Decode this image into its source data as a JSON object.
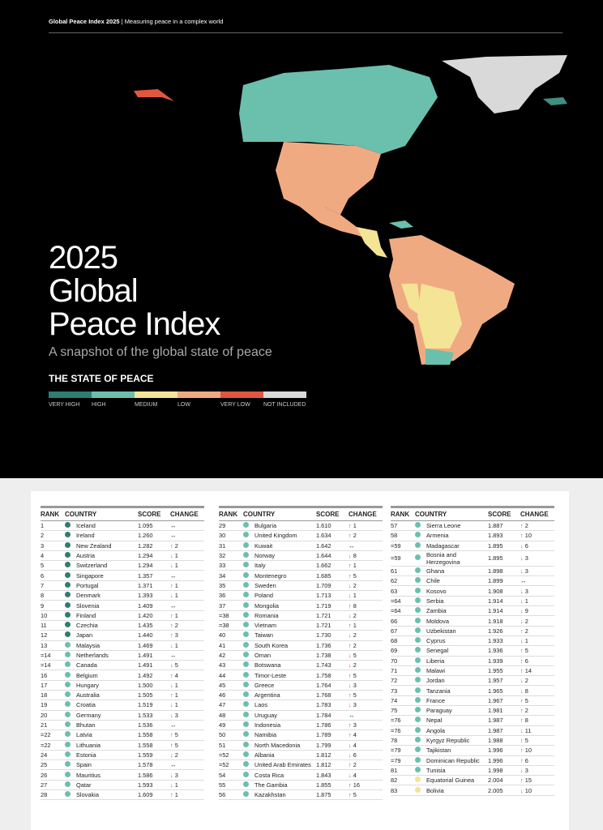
{
  "header": {
    "brand": "Global Peace Index 2025",
    "separator": "|",
    "tagline": "Measuring peace in a complex world"
  },
  "title_lines": [
    "2025",
    "Global",
    "Peace Index"
  ],
  "subtitle": "A snapshot of the global state of peace",
  "legend": {
    "heading": "THE STATE OF PEACE",
    "items": [
      {
        "label": "VERY HIGH",
        "color": "#2e7d70"
      },
      {
        "label": "HIGH",
        "color": "#6bbfad"
      },
      {
        "label": "MEDIUM",
        "color": "#f3e496"
      },
      {
        "label": "LOW",
        "color": "#f0aa82"
      },
      {
        "label": "VERY LOW",
        "color": "#e0573d"
      },
      {
        "label": "NOT INCLUDED",
        "color": "#d9d9d9"
      }
    ]
  },
  "table_columns": [
    "RANK",
    "COUNTRY",
    "SCORE",
    "CHANGE"
  ],
  "tables": [
    {
      "rows": [
        [
          "1",
          "Iceland",
          "1.095",
          "↔",
          0
        ],
        [
          "2",
          "Ireland",
          "1.260",
          "↔",
          0
        ],
        [
          "3",
          "New Zealand",
          "1.282",
          "↑ 2",
          0
        ],
        [
          "4",
          "Austria",
          "1.294",
          "↓ 1",
          0
        ],
        [
          "5",
          "Switzerland",
          "1.294",
          "↓ 1",
          0
        ],
        [
          "6",
          "Singapore",
          "1.357",
          "↔",
          0
        ],
        [
          "7",
          "Portugal",
          "1.371",
          "↑ 1",
          0
        ],
        [
          "8",
          "Denmark",
          "1.393",
          "↓ 1",
          0
        ],
        [
          "9",
          "Slovenia",
          "1.409",
          "↔",
          0
        ],
        [
          "10",
          "Finland",
          "1.420",
          "↑ 1",
          0
        ],
        [
          "11",
          "Czechia",
          "1.435",
          "↑ 2",
          0
        ],
        [
          "12",
          "Japan",
          "1.440",
          "↑ 3",
          0
        ],
        [
          "13",
          "Malaysia",
          "1.469",
          "↓ 1",
          1
        ],
        [
          "=14",
          "Netherlands",
          "1.491",
          "↔",
          1
        ],
        [
          "=14",
          "Canada",
          "1.491",
          "↓ 5",
          1
        ],
        [
          "16",
          "Belgium",
          "1.492",
          "↑ 4",
          1
        ],
        [
          "17",
          "Hungary",
          "1.500",
          "↓ 1",
          1
        ],
        [
          "18",
          "Australia",
          "1.505",
          "↑ 1",
          1
        ],
        [
          "19",
          "Croatia",
          "1.519",
          "↓ 1",
          1
        ],
        [
          "20",
          "Germany",
          "1.533",
          "↓ 3",
          1
        ],
        [
          "21",
          "Bhutan",
          "1.536",
          "↔",
          1
        ],
        [
          "=22",
          "Latvia",
          "1.558",
          "↑ 5",
          1
        ],
        [
          "=22",
          "Lithuania",
          "1.558",
          "↑ 5",
          1
        ],
        [
          "24",
          "Estonia",
          "1.559",
          "↓ 2",
          1
        ],
        [
          "25",
          "Spain",
          "1.578",
          "↔",
          1
        ],
        [
          "26",
          "Mauritius",
          "1.586",
          "↓ 3",
          1
        ],
        [
          "27",
          "Qatar",
          "1.593",
          "↓ 1",
          1
        ],
        [
          "28",
          "Slovakia",
          "1.609",
          "↑ 1",
          1
        ]
      ]
    },
    {
      "rows": [
        [
          "29",
          "Bulgaria",
          "1.610",
          "↑ 1",
          1
        ],
        [
          "30",
          "United Kingdom",
          "1.634",
          "↑ 2",
          1
        ],
        [
          "31",
          "Kuwait",
          "1.642",
          "↔",
          1
        ],
        [
          "32",
          "Norway",
          "1.644",
          "↓ 8",
          1
        ],
        [
          "33",
          "Italy",
          "1.662",
          "↑ 1",
          1
        ],
        [
          "34",
          "Montenegro",
          "1.685",
          "↑ 5",
          1
        ],
        [
          "35",
          "Sweden",
          "1.709",
          "↓ 2",
          1
        ],
        [
          "36",
          "Poland",
          "1.713",
          "↓ 1",
          1
        ],
        [
          "37",
          "Mongolia",
          "1.719",
          "↑ 8",
          1
        ],
        [
          "=38",
          "Romania",
          "1.721",
          "↓ 2",
          1
        ],
        [
          "=38",
          "Vietnam",
          "1.721",
          "↑ 1",
          1
        ],
        [
          "40",
          "Taiwan",
          "1.730",
          "↓ 2",
          1
        ],
        [
          "41",
          "South Korea",
          "1.736",
          "↑ 2",
          1
        ],
        [
          "42",
          "Oman",
          "1.738",
          "↓ 5",
          1
        ],
        [
          "43",
          "Botswana",
          "1.743",
          "↓ 2",
          1
        ],
        [
          "44",
          "Timor-Leste",
          "1.758",
          "↑ 5",
          1
        ],
        [
          "45",
          "Greece",
          "1.764",
          "↓ 3",
          1
        ],
        [
          "46",
          "Argentina",
          "1.768",
          "↑ 5",
          1
        ],
        [
          "47",
          "Laos",
          "1.783",
          "↓ 3",
          1
        ],
        [
          "48",
          "Uruguay",
          "1.784",
          "↔",
          1
        ],
        [
          "49",
          "Indonesia",
          "1.786",
          "↑ 3",
          1
        ],
        [
          "50",
          "Namibia",
          "1.789",
          "↑ 4",
          1
        ],
        [
          "51",
          "North Macedonia",
          "1.799",
          "↓ 4",
          1
        ],
        [
          "=52",
          "Albania",
          "1.812",
          "↓ 6",
          1
        ],
        [
          "=52",
          "United Arab Emirates",
          "1.812",
          "↑ 2",
          1
        ],
        [
          "54",
          "Costa Rica",
          "1.843",
          "↓ 4",
          1
        ],
        [
          "55",
          "The Gambia",
          "1.855",
          "↑ 16",
          1
        ],
        [
          "56",
          "Kazakhstan",
          "1.875",
          "↑ 5",
          1
        ]
      ]
    },
    {
      "rows": [
        [
          "57",
          "Sierra Leone",
          "1.887",
          "↑ 2",
          1
        ],
        [
          "58",
          "Armenia",
          "1.893",
          "↑ 10",
          1
        ],
        [
          "=59",
          "Madagascar",
          "1.895",
          "↓ 6",
          1
        ],
        [
          "=59",
          "Bosnia and Herzegovina",
          "1.895",
          "↓ 3",
          1
        ],
        [
          "61",
          "Ghana",
          "1.898",
          "↓ 3",
          1
        ],
        [
          "62",
          "Chile",
          "1.899",
          "↔",
          1
        ],
        [
          "63",
          "Kosovo",
          "1.908",
          "↓ 3",
          1
        ],
        [
          "=64",
          "Serbia",
          "1.914",
          "↓ 1",
          1
        ],
        [
          "=64",
          "Zambia",
          "1.914",
          "↓ 9",
          1
        ],
        [
          "66",
          "Moldova",
          "1.918",
          "↓ 2",
          1
        ],
        [
          "67",
          "Uzbekistan",
          "1.926",
          "↑ 2",
          1
        ],
        [
          "68",
          "Cyprus",
          "1.933",
          "↓ 1",
          1
        ],
        [
          "69",
          "Senegal",
          "1.936",
          "↑ 5",
          1
        ],
        [
          "70",
          "Liberia",
          "1.939",
          "↑ 6",
          1
        ],
        [
          "71",
          "Malawi",
          "1.955",
          "↑ 14",
          1
        ],
        [
          "72",
          "Jordan",
          "1.957",
          "↓ 2",
          1
        ],
        [
          "73",
          "Tanzania",
          "1.965",
          "↓ 8",
          1
        ],
        [
          "74",
          "France",
          "1.967",
          "↑ 5",
          1
        ],
        [
          "75",
          "Paraguay",
          "1.981",
          "↑ 2",
          1
        ],
        [
          "=76",
          "Nepal",
          "1.987",
          "↑ 8",
          1
        ],
        [
          "=76",
          "Angola",
          "1.987",
          "↓ 11",
          1
        ],
        [
          "78",
          "Kyrgyz Republic",
          "1.988",
          "↑ 5",
          1
        ],
        [
          "=79",
          "Tajikistan",
          "1.996",
          "↑ 10",
          1
        ],
        [
          "=79",
          "Dominican Republic",
          "1.996",
          "↑ 6",
          1
        ],
        [
          "81",
          "Tunisia",
          "1.998",
          "↓ 3",
          1
        ],
        [
          "82",
          "Equatorial Guinea",
          "2.004",
          "↑ 15",
          2
        ],
        [
          "83",
          "Bolivia",
          "2.005",
          "↓ 10",
          2
        ]
      ]
    }
  ]
}
